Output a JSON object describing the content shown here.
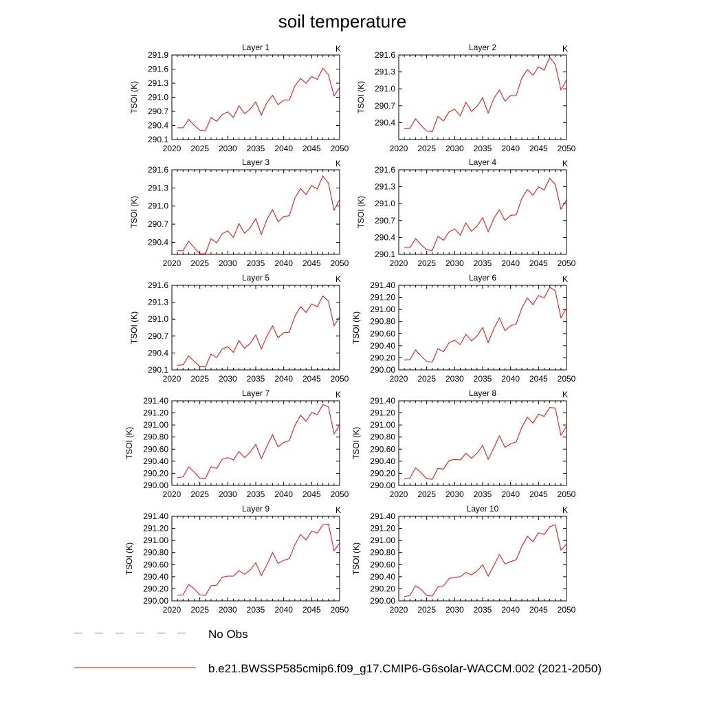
{
  "figure": {
    "title": "soil temperature"
  },
  "legend": {
    "placement": "bottom",
    "entries": [
      {
        "label": "No Obs",
        "color": "#9999ff",
        "style": "dashed"
      },
      {
        "label": "b.e21.BWSSP585cmip6.f09_g17.CMIP6-G6solar-WACCM.002 (2021-2050)",
        "color": "#ff0000",
        "style": "solid"
      }
    ]
  },
  "chart_data": [
    {
      "type": "line",
      "title": "Layer 1",
      "units": "K",
      "ylabel": "TSOI  (K)",
      "xlim": [
        2020,
        2050
      ],
      "xticks": [
        "2020",
        "2025",
        "2030",
        "2035",
        "2040",
        "2045",
        "2050"
      ],
      "ylim": [
        290.1,
        291.9
      ],
      "yticks": [
        "290.1",
        "290.4",
        "290.7",
        "291.0",
        "291.3",
        "291.6",
        "291.9"
      ],
      "x": [
        2021,
        2022,
        2023,
        2024,
        2025,
        2026,
        2027,
        2028,
        2029,
        2030,
        2031,
        2032,
        2033,
        2034,
        2035,
        2036,
        2037,
        2038,
        2039,
        2040,
        2041,
        2042,
        2043,
        2044,
        2045,
        2046,
        2047,
        2048,
        2049,
        2050
      ],
      "series": [
        {
          "color": "#ff0000",
          "values": [
            290.35,
            290.35,
            290.53,
            290.4,
            290.3,
            290.29,
            290.57,
            290.49,
            290.63,
            290.69,
            290.57,
            290.82,
            290.65,
            290.75,
            290.9,
            290.62,
            290.89,
            291.04,
            290.84,
            290.94,
            290.94,
            291.24,
            291.4,
            291.3,
            291.44,
            291.38,
            291.62,
            291.48,
            291.03,
            291.21
          ]
        }
      ]
    },
    {
      "type": "line",
      "title": "Layer 2",
      "units": "K",
      "ylabel": "TSOI  (K)",
      "xlim": [
        2020,
        2050
      ],
      "xticks": [
        "2020",
        "2025",
        "2030",
        "2035",
        "2040",
        "2045",
        "2050"
      ],
      "ylim": [
        290.1,
        291.6
      ],
      "yticks": [
        "290.4",
        "290.7",
        "291.0",
        "291.3",
        "291.6"
      ],
      "x": [
        2021,
        2022,
        2023,
        2024,
        2025,
        2026,
        2027,
        2028,
        2029,
        2030,
        2031,
        2032,
        2033,
        2034,
        2035,
        2036,
        2037,
        2038,
        2039,
        2040,
        2041,
        2042,
        2043,
        2044,
        2045,
        2046,
        2047,
        2048,
        2049,
        2050
      ],
      "series": [
        {
          "color": "#ff0000",
          "values": [
            290.3,
            290.3,
            290.47,
            290.35,
            290.25,
            290.24,
            290.51,
            290.43,
            290.59,
            290.64,
            290.52,
            290.76,
            290.6,
            290.69,
            290.84,
            290.57,
            290.83,
            290.98,
            290.78,
            290.88,
            290.88,
            291.19,
            291.34,
            291.24,
            291.39,
            291.33,
            291.56,
            291.43,
            290.98,
            291.16
          ]
        }
      ]
    },
    {
      "type": "line",
      "title": "Layer 3",
      "units": "K",
      "ylabel": "TSOI  (K)",
      "xlim": [
        2020,
        2050
      ],
      "xticks": [
        "2020",
        "2025",
        "2030",
        "2035",
        "2040",
        "2045",
        "2050"
      ],
      "ylim": [
        290.2,
        291.6
      ],
      "yticks": [
        "290.4",
        "290.7",
        "291.0",
        "291.3",
        "291.6"
      ],
      "x": [
        2021,
        2022,
        2023,
        2024,
        2025,
        2026,
        2027,
        2028,
        2029,
        2030,
        2031,
        2032,
        2033,
        2034,
        2035,
        2036,
        2037,
        2038,
        2039,
        2040,
        2041,
        2042,
        2043,
        2044,
        2045,
        2046,
        2047,
        2048,
        2049,
        2050
      ],
      "series": [
        {
          "color": "#ff0000",
          "values": [
            290.26,
            290.26,
            290.42,
            290.31,
            290.21,
            290.21,
            290.46,
            290.39,
            290.54,
            290.59,
            290.48,
            290.71,
            290.55,
            290.64,
            290.79,
            290.53,
            290.78,
            290.94,
            290.74,
            290.83,
            290.84,
            291.13,
            291.29,
            291.19,
            291.34,
            291.28,
            291.5,
            291.38,
            290.93,
            291.11
          ]
        }
      ]
    },
    {
      "type": "line",
      "title": "Layer 4",
      "units": "K",
      "ylabel": "TSOI  (K)",
      "xlim": [
        2020,
        2050
      ],
      "xticks": [
        "2020",
        "2025",
        "2030",
        "2035",
        "2040",
        "2045",
        "2050"
      ],
      "ylim": [
        290.1,
        291.6
      ],
      "yticks": [
        "290.1",
        "290.4",
        "290.7",
        "291.0",
        "291.3",
        "291.6"
      ],
      "x": [
        2021,
        2022,
        2023,
        2024,
        2025,
        2026,
        2027,
        2028,
        2029,
        2030,
        2031,
        2032,
        2033,
        2034,
        2035,
        2036,
        2037,
        2038,
        2039,
        2040,
        2041,
        2042,
        2043,
        2044,
        2045,
        2046,
        2047,
        2048,
        2049,
        2050
      ],
      "series": [
        {
          "color": "#ff0000",
          "values": [
            290.22,
            290.22,
            290.38,
            290.27,
            290.18,
            290.17,
            290.42,
            290.35,
            290.5,
            290.55,
            290.44,
            290.66,
            290.51,
            290.6,
            290.75,
            290.5,
            290.74,
            290.89,
            290.7,
            290.79,
            290.8,
            291.09,
            291.25,
            291.15,
            291.3,
            291.24,
            291.45,
            291.34,
            290.9,
            291.07
          ]
        }
      ]
    },
    {
      "type": "line",
      "title": "Layer 5",
      "units": "K",
      "ylabel": "TSOI  (K)",
      "xlim": [
        2020,
        2050
      ],
      "xticks": [
        "2020",
        "2025",
        "2030",
        "2035",
        "2040",
        "2045",
        "2050"
      ],
      "ylim": [
        290.1,
        291.6
      ],
      "yticks": [
        "290.1",
        "290.4",
        "290.7",
        "291.0",
        "291.3",
        "291.6"
      ],
      "x": [
        2021,
        2022,
        2023,
        2024,
        2025,
        2026,
        2027,
        2028,
        2029,
        2030,
        2031,
        2032,
        2033,
        2034,
        2035,
        2036,
        2037,
        2038,
        2039,
        2040,
        2041,
        2042,
        2043,
        2044,
        2045,
        2046,
        2047,
        2048,
        2049,
        2050
      ],
      "series": [
        {
          "color": "#ff0000",
          "values": [
            290.18,
            290.19,
            290.35,
            290.25,
            290.16,
            290.15,
            290.38,
            290.32,
            290.47,
            290.51,
            290.41,
            290.62,
            290.48,
            290.57,
            290.72,
            290.47,
            290.7,
            290.88,
            290.67,
            290.76,
            290.77,
            291.05,
            291.22,
            291.12,
            291.27,
            291.22,
            291.41,
            291.32,
            290.88,
            291.04
          ]
        }
      ]
    },
    {
      "type": "line",
      "title": "Layer 6",
      "units": "K",
      "ylabel": "TSOI  (K)",
      "xlim": [
        2020,
        2050
      ],
      "xticks": [
        "2020",
        "2025",
        "2030",
        "2035",
        "2040",
        "2045",
        "2050"
      ],
      "ylim": [
        290.0,
        291.4
      ],
      "yticks": [
        "290.00",
        "290.20",
        "290.40",
        "290.60",
        "290.80",
        "291.00",
        "291.20",
        "291.40"
      ],
      "x": [
        2021,
        2022,
        2023,
        2024,
        2025,
        2026,
        2027,
        2028,
        2029,
        2030,
        2031,
        2032,
        2033,
        2034,
        2035,
        2036,
        2037,
        2038,
        2039,
        2040,
        2041,
        2042,
        2043,
        2044,
        2045,
        2046,
        2047,
        2048,
        2049,
        2050
      ],
      "series": [
        {
          "color": "#ff0000",
          "values": [
            290.16,
            290.17,
            290.33,
            290.23,
            290.14,
            290.13,
            290.35,
            290.3,
            290.45,
            290.49,
            290.42,
            290.59,
            290.48,
            290.56,
            290.7,
            290.45,
            290.68,
            290.86,
            290.65,
            290.73,
            290.76,
            291.02,
            291.19,
            291.08,
            291.23,
            291.19,
            291.37,
            291.31,
            290.86,
            291.02
          ]
        }
      ]
    },
    {
      "type": "line",
      "title": "Layer 7",
      "units": "K",
      "ylabel": "TSOI  (K)",
      "xlim": [
        2020,
        2050
      ],
      "xticks": [
        "2020",
        "2025",
        "2030",
        "2035",
        "2040",
        "2045",
        "2050"
      ],
      "ylim": [
        290.0,
        291.4
      ],
      "yticks": [
        "290.00",
        "290.20",
        "290.40",
        "290.60",
        "290.80",
        "291.00",
        "291.20",
        "291.40"
      ],
      "x": [
        2021,
        2022,
        2023,
        2024,
        2025,
        2026,
        2027,
        2028,
        2029,
        2030,
        2031,
        2032,
        2033,
        2034,
        2035,
        2036,
        2037,
        2038,
        2039,
        2040,
        2041,
        2042,
        2043,
        2044,
        2045,
        2046,
        2047,
        2048,
        2049,
        2050
      ],
      "series": [
        {
          "color": "#ff0000",
          "values": [
            290.13,
            290.14,
            290.31,
            290.22,
            290.12,
            290.11,
            290.31,
            290.28,
            290.43,
            290.46,
            290.42,
            290.56,
            290.46,
            290.55,
            290.68,
            290.44,
            290.65,
            290.84,
            290.64,
            290.71,
            290.74,
            290.99,
            291.16,
            291.06,
            291.21,
            291.17,
            291.34,
            291.3,
            290.85,
            291.0
          ]
        }
      ]
    },
    {
      "type": "line",
      "title": "Layer 8",
      "units": "K",
      "ylabel": "TSOI  (K)",
      "xlim": [
        2020,
        2050
      ],
      "xticks": [
        "2020",
        "2025",
        "2030",
        "2035",
        "2040",
        "2045",
        "2050"
      ],
      "ylim": [
        290.0,
        291.4
      ],
      "yticks": [
        "290.00",
        "290.20",
        "290.40",
        "290.60",
        "290.80",
        "291.00",
        "291.20",
        "291.40"
      ],
      "x": [
        2021,
        2022,
        2023,
        2024,
        2025,
        2026,
        2027,
        2028,
        2029,
        2030,
        2031,
        2032,
        2033,
        2034,
        2035,
        2036,
        2037,
        2038,
        2039,
        2040,
        2041,
        2042,
        2043,
        2044,
        2045,
        2046,
        2047,
        2048,
        2049,
        2050
      ],
      "series": [
        {
          "color": "#ff0000",
          "values": [
            290.11,
            290.12,
            290.29,
            290.21,
            290.11,
            290.1,
            290.28,
            290.27,
            290.41,
            290.43,
            290.42,
            290.53,
            290.45,
            290.53,
            290.66,
            290.43,
            290.62,
            290.82,
            290.63,
            290.69,
            290.72,
            290.96,
            291.13,
            291.03,
            291.18,
            291.14,
            291.29,
            291.28,
            290.83,
            290.98
          ]
        }
      ]
    },
    {
      "type": "line",
      "title": "Layer 9",
      "units": "K",
      "ylabel": "TSOI  (K)",
      "xlim": [
        2020,
        2050
      ],
      "xticks": [
        "2020",
        "2025",
        "2030",
        "2035",
        "2040",
        "2045",
        "2050"
      ],
      "ylim": [
        290.0,
        291.4
      ],
      "yticks": [
        "290.00",
        "290.20",
        "290.40",
        "290.60",
        "290.80",
        "291.00",
        "291.20",
        "291.40"
      ],
      "x": [
        2021,
        2022,
        2023,
        2024,
        2025,
        2026,
        2027,
        2028,
        2029,
        2030,
        2031,
        2032,
        2033,
        2034,
        2035,
        2036,
        2037,
        2038,
        2039,
        2040,
        2041,
        2042,
        2043,
        2044,
        2045,
        2046,
        2047,
        2048,
        2049,
        2050
      ],
      "series": [
        {
          "color": "#ff0000",
          "values": [
            290.09,
            290.1,
            290.27,
            290.2,
            290.1,
            290.09,
            290.25,
            290.26,
            290.39,
            290.41,
            290.41,
            290.5,
            290.44,
            290.51,
            290.63,
            290.42,
            290.6,
            290.8,
            290.62,
            290.67,
            290.7,
            290.93,
            291.1,
            291.01,
            291.16,
            291.12,
            291.26,
            291.27,
            290.83,
            290.96
          ]
        }
      ]
    },
    {
      "type": "line",
      "title": "Layer 10",
      "units": "K",
      "ylabel": "TSOI  (K)",
      "xlim": [
        2020,
        2050
      ],
      "xticks": [
        "2020",
        "2025",
        "2030",
        "2035",
        "2040",
        "2045",
        "2050"
      ],
      "ylim": [
        290.0,
        291.4
      ],
      "yticks": [
        "290.00",
        "290.20",
        "290.40",
        "290.60",
        "290.80",
        "291.00",
        "291.20",
        "291.40"
      ],
      "x": [
        2021,
        2022,
        2023,
        2024,
        2025,
        2026,
        2027,
        2028,
        2029,
        2030,
        2031,
        2032,
        2033,
        2034,
        2035,
        2036,
        2037,
        2038,
        2039,
        2040,
        2041,
        2042,
        2043,
        2044,
        2045,
        2046,
        2047,
        2048,
        2049,
        2050
      ],
      "series": [
        {
          "color": "#ff0000",
          "values": [
            290.07,
            290.09,
            290.25,
            290.19,
            290.09,
            290.08,
            290.23,
            290.25,
            290.37,
            290.39,
            290.4,
            290.47,
            290.43,
            290.49,
            290.6,
            290.41,
            290.58,
            290.77,
            290.61,
            290.65,
            290.68,
            290.9,
            291.07,
            290.98,
            291.13,
            291.1,
            291.23,
            291.26,
            290.84,
            290.94
          ]
        }
      ]
    }
  ]
}
